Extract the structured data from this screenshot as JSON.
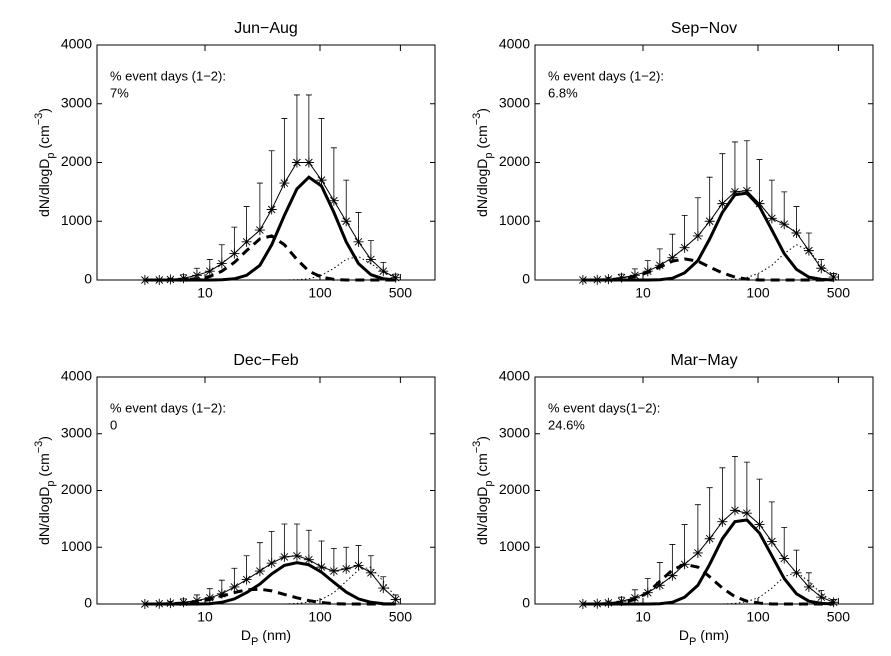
{
  "chart_data": [
    {
      "type": "line",
      "title": "Jun−Aug",
      "annotation": [
        "% event days (1−2):",
        "7%"
      ],
      "ylabel": [
        {
          "text": "dN/dlogD"
        },
        {
          "text": "p",
          "shift": "sub"
        },
        {
          "text": " (cm"
        },
        {
          "text": "−3",
          "shift": "super"
        },
        {
          "text": ")"
        }
      ],
      "xscale": "log",
      "xlim": [
        1.15,
        1000
      ],
      "ylim": [
        0,
        4000
      ],
      "xticks": [
        10,
        100,
        500
      ],
      "yticks": [
        0,
        1000,
        2000,
        3000,
        4000
      ],
      "x": [
        3,
        4,
        5,
        6.5,
        8.5,
        11,
        14,
        18,
        23,
        30,
        38,
        49,
        63,
        80,
        103,
        132,
        169,
        216,
        277,
        355,
        455
      ],
      "series": [
        {
          "style": "star",
          "color": "#000000",
          "values": [
            0,
            0,
            10,
            30,
            80,
            150,
            280,
            450,
            650,
            850,
            1200,
            1650,
            2000,
            2000,
            1700,
            1350,
            1000,
            650,
            350,
            150,
            40
          ],
          "errors": [
            0,
            0,
            20,
            60,
            120,
            200,
            320,
            450,
            600,
            800,
            1000,
            1100,
            1150,
            1150,
            1050,
            900,
            700,
            500,
            320,
            150,
            60
          ]
        },
        {
          "style": "dashed",
          "color": "#000000",
          "values": [
            0,
            0,
            0,
            5,
            20,
            60,
            150,
            300,
            500,
            700,
            750,
            600,
            350,
            150,
            50,
            10,
            0,
            0,
            0,
            0,
            0
          ]
        },
        {
          "style": "solid",
          "color": "#000000",
          "values": [
            0,
            0,
            0,
            0,
            0,
            0,
            5,
            20,
            80,
            250,
            600,
            1100,
            1550,
            1750,
            1600,
            1150,
            650,
            280,
            90,
            20,
            0
          ]
        },
        {
          "style": "dotted",
          "color": "#000000",
          "values": [
            0,
            0,
            0,
            0,
            0,
            0,
            0,
            0,
            0,
            0,
            0,
            0,
            5,
            20,
            80,
            200,
            350,
            400,
            280,
            130,
            40
          ]
        }
      ]
    },
    {
      "type": "line",
      "title": "Sep−Nov",
      "annotation": [
        "% event days (1−2):",
        "6.8%"
      ],
      "ylabel": [
        {
          "text": "dN/dlogD"
        },
        {
          "text": "p",
          "shift": "sub"
        },
        {
          "text": " (cm"
        },
        {
          "text": "−3",
          "shift": "super"
        },
        {
          "text": ")"
        }
      ],
      "xscale": "log",
      "xlim": [
        1.15,
        1000
      ],
      "ylim": [
        0,
        4000
      ],
      "xticks": [
        10,
        100,
        500
      ],
      "yticks": [
        0,
        1000,
        2000,
        3000,
        4000
      ],
      "x": [
        3,
        4,
        5,
        6.5,
        8.5,
        11,
        14,
        18,
        23,
        30,
        38,
        49,
        63,
        80,
        103,
        132,
        169,
        216,
        277,
        355,
        455
      ],
      "series": [
        {
          "style": "star",
          "color": "#000000",
          "values": [
            0,
            5,
            15,
            40,
            80,
            150,
            250,
            380,
            550,
            750,
            1000,
            1300,
            1500,
            1520,
            1300,
            1050,
            950,
            800,
            500,
            200,
            50
          ],
          "errors": [
            0,
            10,
            30,
            60,
            110,
            180,
            280,
            400,
            550,
            650,
            750,
            850,
            850,
            850,
            750,
            650,
            550,
            450,
            300,
            150,
            60
          ]
        },
        {
          "style": "dashed",
          "color": "#000000",
          "values": [
            0,
            0,
            5,
            20,
            60,
            130,
            220,
            320,
            360,
            320,
            220,
            120,
            50,
            15,
            0,
            0,
            0,
            0,
            0,
            0,
            0
          ]
        },
        {
          "style": "solid",
          "color": "#000000",
          "values": [
            0,
            0,
            0,
            0,
            0,
            0,
            5,
            30,
            120,
            330,
            700,
            1150,
            1450,
            1480,
            1250,
            850,
            450,
            180,
            50,
            10,
            0
          ]
        },
        {
          "style": "dotted",
          "color": "#000000",
          "values": [
            0,
            0,
            0,
            0,
            0,
            0,
            0,
            0,
            0,
            0,
            0,
            0,
            10,
            40,
            120,
            250,
            450,
            600,
            500,
            250,
            80
          ]
        }
      ]
    },
    {
      "type": "line",
      "title": "Dec−Feb",
      "annotation": [
        "% event days (1−2):",
        "0"
      ],
      "ylabel": [
        {
          "text": "dN/dlogD"
        },
        {
          "text": "p",
          "shift": "sub"
        },
        {
          "text": " (cm"
        },
        {
          "text": "−3",
          "shift": "super"
        },
        {
          "text": ")"
        }
      ],
      "xlabel": [
        {
          "text": "D"
        },
        {
          "text": "P",
          "shift": "sub"
        },
        {
          "text": " (nm)"
        }
      ],
      "xscale": "log",
      "xlim": [
        1.15,
        1000
      ],
      "ylim": [
        0,
        4000
      ],
      "xticks": [
        10,
        100,
        500
      ],
      "yticks": [
        0,
        1000,
        2000,
        3000,
        4000
      ],
      "x": [
        3,
        4,
        5,
        6.5,
        8.5,
        11,
        14,
        18,
        23,
        30,
        38,
        49,
        63,
        80,
        103,
        132,
        169,
        216,
        277,
        355,
        455
      ],
      "series": [
        {
          "style": "star",
          "color": "#000000",
          "values": [
            0,
            5,
            15,
            30,
            60,
            110,
            180,
            300,
            430,
            580,
            720,
            830,
            850,
            780,
            650,
            580,
            620,
            680,
            550,
            280,
            80
          ],
          "errors": [
            0,
            10,
            30,
            60,
            100,
            160,
            240,
            330,
            420,
            500,
            560,
            580,
            560,
            520,
            460,
            400,
            380,
            350,
            300,
            200,
            80
          ]
        },
        {
          "style": "dashed",
          "color": "#000000",
          "values": [
            0,
            0,
            5,
            15,
            40,
            80,
            140,
            200,
            250,
            260,
            230,
            170,
            110,
            60,
            25,
            5,
            0,
            0,
            0,
            0,
            0
          ]
        },
        {
          "style": "solid",
          "color": "#000000",
          "values": [
            0,
            0,
            0,
            0,
            0,
            5,
            30,
            90,
            200,
            350,
            530,
            680,
            730,
            690,
            560,
            380,
            210,
            90,
            30,
            5,
            0
          ]
        },
        {
          "style": "dotted",
          "color": "#000000",
          "values": [
            0,
            0,
            0,
            0,
            0,
            0,
            0,
            0,
            0,
            0,
            0,
            0,
            10,
            30,
            80,
            200,
            400,
            600,
            650,
            400,
            120
          ]
        }
      ]
    },
    {
      "type": "line",
      "title": "Mar−May",
      "annotation": [
        "% event days(1−2):",
        "24.6%"
      ],
      "ylabel": [
        {
          "text": "dN/dlogD"
        },
        {
          "text": "p",
          "shift": "sub"
        },
        {
          "text": " (cm"
        },
        {
          "text": "−3",
          "shift": "super"
        },
        {
          "text": ")"
        }
      ],
      "xlabel": [
        {
          "text": "D"
        },
        {
          "text": "P",
          "shift": "sub"
        },
        {
          "text": " (nm)"
        }
      ],
      "xscale": "log",
      "xlim": [
        1.15,
        1000
      ],
      "ylim": [
        0,
        4000
      ],
      "xticks": [
        10,
        100,
        500
      ],
      "yticks": [
        0,
        1000,
        2000,
        3000,
        4000
      ],
      "x": [
        3,
        4,
        5,
        6.5,
        8.5,
        11,
        14,
        18,
        23,
        30,
        38,
        49,
        63,
        80,
        103,
        132,
        169,
        216,
        277,
        355,
        455
      ],
      "series": [
        {
          "style": "star",
          "color": "#000000",
          "values": [
            0,
            5,
            20,
            50,
            110,
            200,
            330,
            500,
            700,
            900,
            1150,
            1450,
            1650,
            1600,
            1400,
            1100,
            800,
            550,
            300,
            120,
            30
          ],
          "errors": [
            0,
            10,
            30,
            70,
            140,
            250,
            400,
            550,
            700,
            850,
            900,
            950,
            950,
            900,
            800,
            700,
            550,
            400,
            250,
            120,
            50
          ]
        },
        {
          "style": "dashed",
          "color": "#000000",
          "values": [
            0,
            0,
            5,
            20,
            80,
            200,
            400,
            600,
            700,
            650,
            480,
            280,
            130,
            50,
            15,
            0,
            0,
            0,
            0,
            0,
            0
          ]
        },
        {
          "style": "solid",
          "color": "#000000",
          "values": [
            0,
            0,
            0,
            0,
            0,
            0,
            5,
            30,
            120,
            330,
            700,
            1150,
            1450,
            1480,
            1250,
            850,
            450,
            180,
            50,
            10,
            0
          ]
        },
        {
          "style": "dotted",
          "color": "#000000",
          "values": [
            0,
            0,
            0,
            0,
            0,
            0,
            0,
            0,
            0,
            0,
            0,
            0,
            10,
            40,
            120,
            280,
            480,
            560,
            400,
            180,
            50
          ]
        }
      ]
    }
  ]
}
